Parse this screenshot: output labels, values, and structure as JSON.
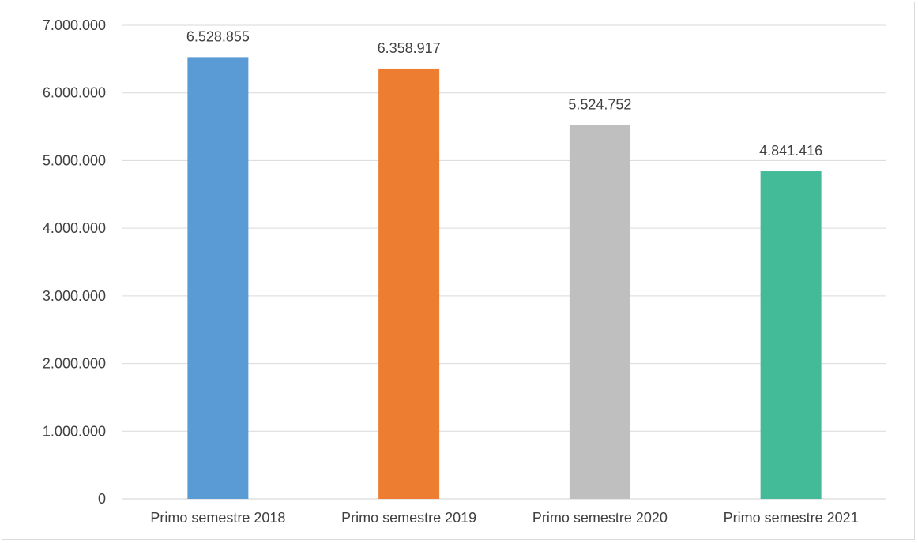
{
  "chart_data": {
    "type": "bar",
    "title": "",
    "xlabel": "",
    "ylabel": "",
    "categories": [
      "Primo semestre 2018",
      "Primo semestre 2019",
      "Primo semestre 2020",
      "Primo semestre 2021"
    ],
    "values": [
      6528855,
      6358917,
      5524752,
      4841416
    ],
    "value_labels": [
      "6.528.855",
      "6.358.917",
      "5.524.752",
      "4.841.416"
    ],
    "bar_colors": [
      "#5b9bd5",
      "#ed7d31",
      "#bfbfbf",
      "#43bb98"
    ],
    "ylim": [
      0,
      7000000
    ],
    "yticks": [
      0,
      1000000,
      2000000,
      3000000,
      4000000,
      5000000,
      6000000,
      7000000
    ],
    "ytick_labels": [
      "0",
      "1.000.000",
      "2.000.000",
      "3.000.000",
      "4.000.000",
      "5.000.000",
      "6.000.000",
      "7.000.000"
    ],
    "grid": true,
    "legend": "none"
  }
}
